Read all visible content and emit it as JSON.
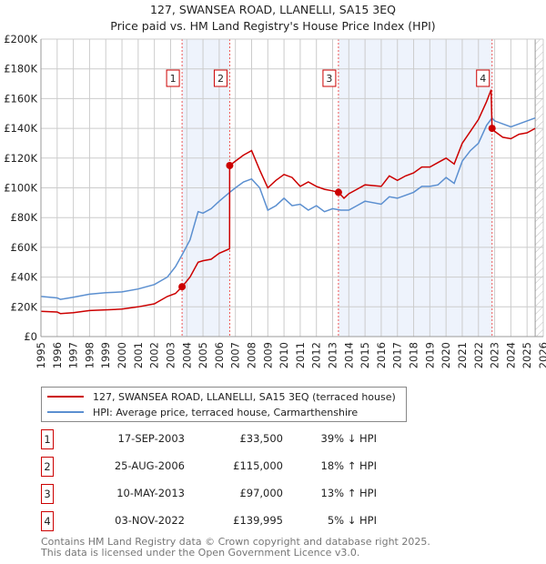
{
  "chart_data": {
    "type": "line",
    "title": "127, SWANSEA ROAD, LLANELLI, SA15 3EQ",
    "subtitle": "Price paid vs. HM Land Registry's House Price Index (HPI)",
    "xlim": [
      1995,
      2026
    ],
    "ylim": [
      0,
      200000
    ],
    "x_ticks": [
      "1995",
      "1996",
      "1997",
      "1998",
      "1999",
      "2000",
      "2001",
      "2002",
      "2003",
      "2004",
      "2005",
      "2006",
      "2007",
      "2008",
      "2009",
      "2010",
      "2011",
      "2012",
      "2013",
      "2014",
      "2015",
      "2016",
      "2017",
      "2018",
      "2019",
      "2020",
      "2021",
      "2022",
      "2023",
      "2024",
      "2025",
      "2026"
    ],
    "y_ticks": [
      {
        "value": 0,
        "label": "£0"
      },
      {
        "value": 20000,
        "label": "£20K"
      },
      {
        "value": 40000,
        "label": "£40K"
      },
      {
        "value": 60000,
        "label": "£60K"
      },
      {
        "value": 80000,
        "label": "£80K"
      },
      {
        "value": 100000,
        "label": "£100K"
      },
      {
        "value": 120000,
        "label": "£120K"
      },
      {
        "value": 140000,
        "label": "£140K"
      },
      {
        "value": 160000,
        "label": "£160K"
      },
      {
        "value": 180000,
        "label": "£180K"
      },
      {
        "value": 200000,
        "label": "£200K"
      }
    ],
    "grid": true,
    "shaded_ranges": [
      [
        2003.71,
        2006.65
      ],
      [
        2013.36,
        2022.84
      ]
    ],
    "forecast_from": 2025.5,
    "series": [
      {
        "name": "127, SWANSEA ROAD, LLANELLI, SA15 3EQ (terraced house)",
        "color": "#cc0000",
        "x": [
          1995,
          1996,
          1996.2,
          1997,
          1998,
          1999,
          2000,
          2001,
          2002,
          2002.8,
          2003.3,
          2003.71,
          2004.2,
          2004.7,
          2005,
          2005.5,
          2006,
          2006.64,
          2006.65,
          2007,
          2007.5,
          2008,
          2008.5,
          2009,
          2009.5,
          2010,
          2010.5,
          2011,
          2011.5,
          2012,
          2012.5,
          2013,
          2013.36,
          2013.7,
          2014,
          2014.5,
          2015,
          2016,
          2016.5,
          2017,
          2017.5,
          2018,
          2018.5,
          2019,
          2019.5,
          2020,
          2020.5,
          2021,
          2021.5,
          2022,
          2022.5,
          2022.78,
          2022.84,
          2023,
          2023.5,
          2024,
          2024.5,
          2025,
          2025.5
        ],
        "y": [
          17000,
          16500,
          15500,
          16000,
          17500,
          18000,
          18500,
          20000,
          22000,
          27000,
          29000,
          33500,
          40000,
          50000,
          51000,
          52000,
          56000,
          59000,
          115000,
          118000,
          122000,
          125000,
          112000,
          100000,
          105000,
          109000,
          107000,
          101000,
          104000,
          101000,
          99000,
          98000,
          97000,
          93000,
          96000,
          99000,
          102000,
          101000,
          108000,
          105000,
          108000,
          110000,
          114000,
          114000,
          117000,
          120000,
          116000,
          130000,
          138000,
          146000,
          158000,
          166000,
          139995,
          138000,
          134000,
          133000,
          136000,
          137000,
          140000
        ]
      },
      {
        "name": "HPI: Average price, terraced house, Carmarthenshire",
        "color": "#5b8fd0",
        "x": [
          1995,
          1996,
          1996.2,
          1997,
          1998,
          1999,
          2000,
          2001,
          2002,
          2002.8,
          2003.3,
          2003.71,
          2004.2,
          2004.7,
          2005,
          2005.5,
          2006,
          2006.65,
          2007,
          2007.5,
          2008,
          2008.5,
          2009,
          2009.5,
          2010,
          2010.5,
          2011,
          2011.5,
          2012,
          2012.5,
          2013,
          2013.5,
          2014,
          2014.5,
          2015,
          2016,
          2016.5,
          2017,
          2017.5,
          2018,
          2018.5,
          2019,
          2019.5,
          2020,
          2020.5,
          2021,
          2021.5,
          2022,
          2022.5,
          2022.84,
          2023,
          2023.5,
          2024,
          2024.5,
          2025,
          2025.5
        ],
        "y": [
          27000,
          26000,
          25000,
          26500,
          28500,
          29500,
          30000,
          32000,
          35000,
          40000,
          47000,
          55000,
          65000,
          84000,
          83000,
          86000,
          91000,
          97000,
          100000,
          104000,
          106000,
          100000,
          85000,
          88000,
          93000,
          88000,
          89000,
          85000,
          88000,
          84000,
          86000,
          85000,
          85000,
          88000,
          91000,
          89000,
          94000,
          93000,
          95000,
          97000,
          101000,
          101000,
          102000,
          107000,
          103000,
          118000,
          125000,
          130000,
          142000,
          147000,
          145000,
          143000,
          141000,
          143000,
          145000,
          147000
        ]
      }
    ],
    "sales": [
      {
        "label": "1",
        "x": 2003.71,
        "y": 33500
      },
      {
        "label": "2",
        "x": 2006.65,
        "y": 115000
      },
      {
        "label": "3",
        "x": 2013.36,
        "y": 97000
      },
      {
        "label": "4",
        "x": 2022.84,
        "y": 139995
      }
    ]
  },
  "legend": [
    {
      "label": "127, SWANSEA ROAD, LLANELLI, SA15 3EQ (terraced house)",
      "color": "#cc0000"
    },
    {
      "label": "HPI: Average price, terraced house, Carmarthenshire",
      "color": "#5b8fd0"
    }
  ],
  "transactions": [
    {
      "num": "1",
      "date": "17-SEP-2003",
      "price": "£33,500",
      "hpi": "39% ↓ HPI"
    },
    {
      "num": "2",
      "date": "25-AUG-2006",
      "price": "£115,000",
      "hpi": "18% ↑ HPI"
    },
    {
      "num": "3",
      "date": "10-MAY-2013",
      "price": "£97,000",
      "hpi": "13% ↑ HPI"
    },
    {
      "num": "4",
      "date": "03-NOV-2022",
      "price": "£139,995",
      "hpi": "5% ↓ HPI"
    }
  ],
  "footer": {
    "line1": "Contains HM Land Registry data © Crown copyright and database right 2025.",
    "line2": "This data is licensed under the Open Government Licence v3.0."
  }
}
